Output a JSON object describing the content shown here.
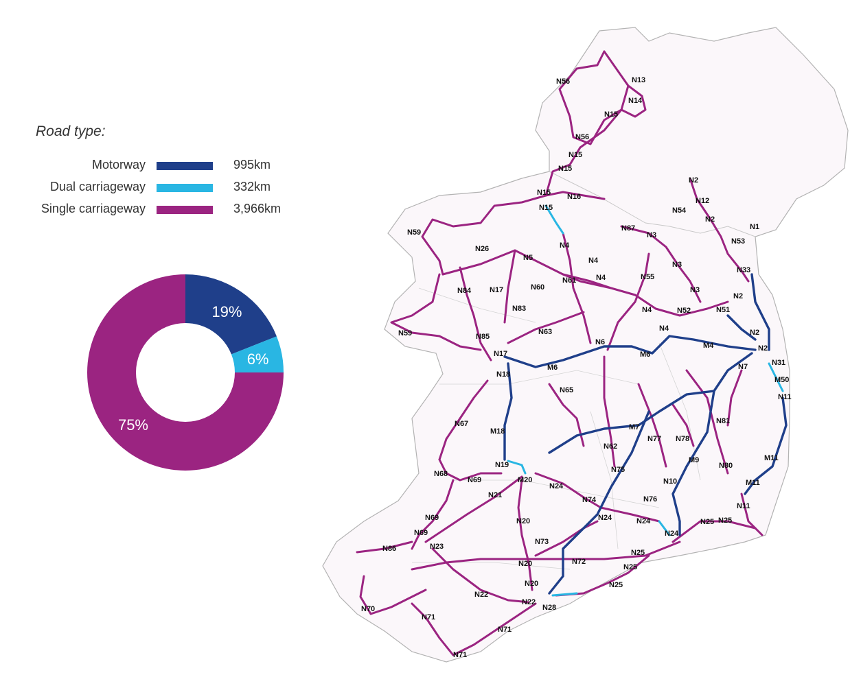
{
  "legend": {
    "title": "Road type:",
    "items": [
      {
        "label": "Motorway",
        "value": "995km",
        "color": "#1f3f8a"
      },
      {
        "label": "Dual carriageway",
        "value": "332km",
        "color": "#29b6e3"
      },
      {
        "label": "Single carriageway",
        "value": "3,966km",
        "color": "#9b2481"
      }
    ]
  },
  "chart_data": {
    "type": "pie",
    "categories": [
      "Motorway",
      "Dual carriageway",
      "Single carriageway"
    ],
    "values": [
      19,
      6,
      75
    ],
    "labels": [
      "19%",
      "6%",
      "75%"
    ],
    "colors": [
      "#1f3f8a",
      "#29b6e3",
      "#9b2481"
    ],
    "donut": true
  },
  "map": {
    "road_labels": [
      "N13",
      "N56",
      "N14",
      "N15",
      "N56",
      "N15",
      "N15",
      "N2",
      "N12",
      "N15",
      "N16",
      "N54",
      "N15",
      "N2",
      "N1",
      "N87",
      "N3",
      "N53",
      "N59",
      "N4",
      "N26",
      "N5",
      "N4",
      "N3",
      "N33",
      "N4",
      "N55",
      "N61",
      "N84",
      "N17",
      "N60",
      "N3",
      "N2",
      "N83",
      "N4",
      "N52",
      "N51",
      "N59",
      "N63",
      "N4",
      "N2",
      "N85",
      "N6",
      "M4",
      "M6",
      "N17",
      "M6",
      "N2",
      "N31",
      "N18",
      "N7",
      "M50",
      "N65",
      "N11",
      "N67",
      "M7",
      "M18",
      "N81",
      "N77",
      "N78",
      "N62",
      "M9",
      "M11",
      "N19",
      "N75",
      "N68",
      "N69",
      "M20",
      "N10",
      "N80",
      "M11",
      "N24",
      "N21",
      "N74",
      "N76",
      "N11",
      "N69",
      "N20",
      "N24",
      "N24",
      "N24",
      "N25",
      "N25",
      "N69",
      "N86",
      "N73",
      "N23",
      "N25",
      "N20",
      "N72",
      "N25",
      "N20",
      "N25",
      "N22",
      "N22",
      "N28",
      "N70",
      "N71",
      "N71",
      "N71"
    ]
  }
}
